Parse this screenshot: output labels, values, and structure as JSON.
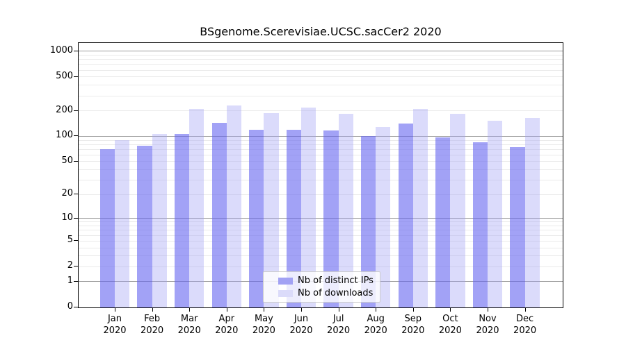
{
  "figure_title": "BSgenome.Scerevisiae.UCSC.sacCer2 2020",
  "legend": {
    "items": [
      {
        "label": "Nb of distinct IPs",
        "swatch_color": "#a2a2f4"
      },
      {
        "label": "Nb of downloads",
        "swatch_color": "#dbdbfa"
      }
    ]
  },
  "chart_data": {
    "type": "bar",
    "title": "BSgenome.Scerevisiae.UCSC.sacCer2 2020",
    "categories": [
      "Jan",
      "Feb",
      "Mar",
      "Apr",
      "May",
      "Jun",
      "Jul",
      "Aug",
      "Sep",
      "Oct",
      "Nov",
      "Dec"
    ],
    "x_tick_year": "2020",
    "series": [
      {
        "name": "Nb of distinct IPs",
        "values": [
          70,
          77,
          107,
          145,
          120,
          119,
          118,
          100,
          143,
          97,
          85,
          75
        ]
      },
      {
        "name": "Nb of downloads",
        "values": [
          90,
          107,
          210,
          230,
          188,
          218,
          184,
          130,
          212,
          184,
          152,
          165
        ]
      }
    ],
    "xlabel": "",
    "ylabel": "",
    "yscale": "log1p",
    "ylim": [
      0,
      1250
    ],
    "y_ticks": [
      0,
      1,
      2,
      5,
      10,
      20,
      50,
      100,
      200,
      500,
      1000
    ],
    "grid": "on",
    "grid_major_at": [
      1,
      10,
      100,
      1000
    ],
    "grid_minor_at": [
      2,
      3,
      4,
      5,
      6,
      7,
      8,
      9,
      20,
      30,
      40,
      50,
      60,
      70,
      80,
      90,
      200,
      300,
      400,
      500,
      600,
      700,
      800,
      900
    ],
    "legend_position": "lower center"
  },
  "colors": {
    "bar_distinct_ips": "rgba(100,100,240,0.6)",
    "bar_downloads": "rgba(160,160,245,0.38)",
    "grid_major": "#9b9b9b",
    "grid_minor": "#eaeaea",
    "axis": "#000000",
    "legend_border": "#cccccc"
  }
}
